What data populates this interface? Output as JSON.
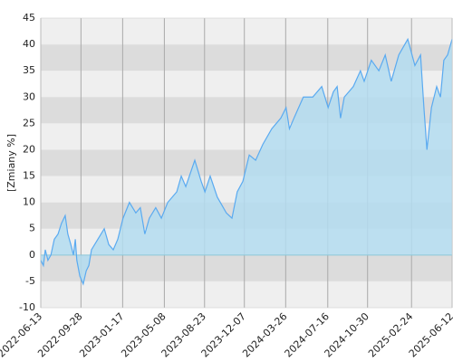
{
  "chart_data": {
    "type": "area",
    "y_label": "[Zmiany %]",
    "x": [
      "2022-06-13",
      "2022-06-20",
      "2022-06-25",
      "2022-07-02",
      "2022-07-10",
      "2022-07-19",
      "2022-07-29",
      "2022-08-07",
      "2022-08-17",
      "2022-08-24",
      "2022-09-01",
      "2022-09-08",
      "2022-09-13",
      "2022-09-17",
      "2022-09-25",
      "2022-10-04",
      "2022-10-12",
      "2022-10-19",
      "2022-10-26",
      "2022-11-12",
      "2022-11-29",
      "2022-12-11",
      "2022-12-23",
      "2023-01-04",
      "2023-01-18",
      "2023-02-04",
      "2023-02-21",
      "2023-03-05",
      "2023-03-17",
      "2023-03-29",
      "2023-04-15",
      "2023-04-30",
      "2023-05-17",
      "2023-06-10",
      "2023-06-22",
      "2023-07-04",
      "2023-07-28",
      "2023-08-14",
      "2023-08-24",
      "2023-09-07",
      "2023-09-26",
      "2023-10-20",
      "2023-11-04",
      "2023-11-18",
      "2023-12-03",
      "2023-12-20",
      "2024-01-06",
      "2024-01-25",
      "2024-02-18",
      "2024-03-13",
      "2024-03-27",
      "2024-04-05",
      "2024-04-17",
      "2024-05-12",
      "2024-06-06",
      "2024-06-30",
      "2024-07-17",
      "2024-07-31",
      "2024-08-10",
      "2024-08-19",
      "2024-08-29",
      "2024-09-22",
      "2024-10-11",
      "2024-10-21",
      "2024-11-09",
      "2024-11-29",
      "2024-12-16",
      "2025-01-01",
      "2025-01-21",
      "2025-02-14",
      "2025-03-05",
      "2025-03-20",
      "2025-03-29",
      "2025-04-06",
      "2025-04-18",
      "2025-05-02",
      "2025-05-12",
      "2025-05-21",
      "2025-05-31",
      "2025-06-12"
    ],
    "values": [
      -1,
      -2,
      1,
      -1,
      0,
      3,
      4,
      6,
      7.5,
      4,
      2,
      0,
      3,
      -1,
      -4,
      -5.5,
      -3,
      -2,
      1,
      3,
      5,
      2,
      1,
      3,
      7,
      10,
      8,
      9,
      4,
      7,
      9,
      7,
      10,
      12,
      15,
      13,
      18,
      14,
      12,
      15,
      11,
      8,
      7,
      12,
      14,
      19,
      18,
      21,
      24,
      26,
      28,
      24,
      26,
      30,
      30,
      32,
      28,
      31,
      32,
      26,
      30,
      32,
      35,
      33,
      37,
      35,
      38,
      33,
      38,
      41,
      36,
      38,
      28,
      20,
      28,
      32,
      30,
      37,
      38,
      41
    ],
    "color": "#5aaaf0",
    "fill": "#b3dcf0",
    "xlim": [
      "2022-06-13",
      "2025-06-12"
    ],
    "xticks": [
      "2022-06-13",
      "2022-09-28",
      "2023-01-17",
      "2023-05-08",
      "2023-08-23",
      "2023-12-07",
      "2024-03-26",
      "2024-07-16",
      "2024-10-30",
      "2025-02-24",
      "2025-06-12"
    ],
    "ylim": [
      -10,
      45
    ],
    "yticks": [
      -10,
      -5,
      0,
      5,
      10,
      15,
      20,
      25,
      30,
      35,
      40,
      45
    ],
    "grid": true
  }
}
